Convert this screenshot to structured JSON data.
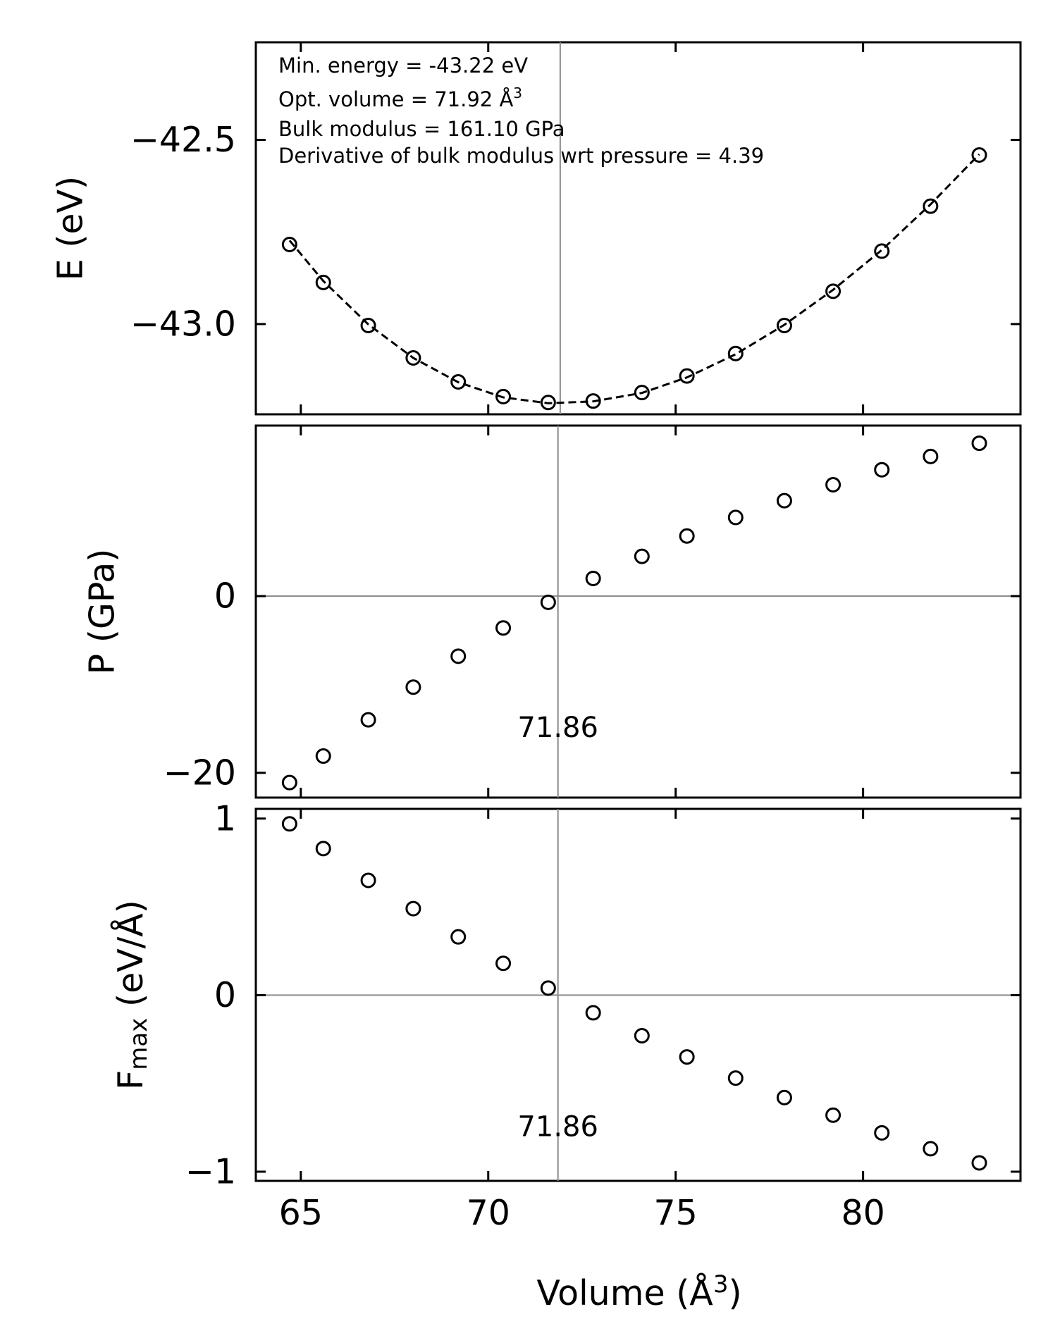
{
  "chart_data": [
    {
      "type": "scatter",
      "panel": "energy",
      "ylabel": "E (eV)",
      "xlim": [
        63.8,
        84.2
      ],
      "ylim": [
        -43.245,
        -42.235
      ],
      "yticks": [
        -43.0,
        -42.5
      ],
      "ytick_labels": [
        "−43.0",
        "−42.5"
      ],
      "x": [
        64.7,
        65.6,
        66.8,
        68.0,
        69.2,
        70.4,
        71.6,
        72.8,
        74.1,
        75.3,
        76.6,
        77.9,
        79.2,
        80.5,
        81.8,
        83.1
      ],
      "series": [
        {
          "name": "data",
          "marker": "open-circle",
          "values": [
            -42.784,
            -42.887,
            -43.004,
            -43.092,
            -43.157,
            -43.197,
            -43.213,
            -43.209,
            -43.186,
            -43.141,
            -43.08,
            -43.004,
            -42.911,
            -42.802,
            -42.68,
            -42.541
          ]
        },
        {
          "name": "EOS fit",
          "style": "dashed-line",
          "values": [
            -42.773,
            -42.883,
            -43.001,
            -43.092,
            -43.158,
            -43.199,
            -43.215,
            -43.21,
            -43.187,
            -43.145,
            -43.082,
            -43.002,
            -42.907,
            -42.799,
            -42.675,
            -42.539
          ]
        }
      ],
      "vline_x": 71.92,
      "annotations": [
        "Min. energy = -43.22 eV",
        "Opt. volume = 71.92 Å",
        "Bulk modulus = 161.10 GPa",
        "Derivative of bulk modulus wrt pressure = 4.39"
      ],
      "annotation_superscript": "3"
    },
    {
      "type": "scatter",
      "panel": "pressure",
      "ylabel": "P (GPa)",
      "xlim": [
        63.8,
        84.2
      ],
      "ylim": [
        -22.8,
        19.3
      ],
      "yticks": [
        -20,
        0
      ],
      "ytick_labels": [
        "−20",
        "0"
      ],
      "x": [
        64.7,
        65.6,
        66.8,
        68.0,
        69.2,
        70.4,
        71.6,
        72.8,
        74.1,
        75.3,
        76.6,
        77.9,
        79.2,
        80.5,
        81.8,
        83.1
      ],
      "values": [
        -21.1,
        -18.1,
        -14.0,
        -10.3,
        -6.8,
        -3.6,
        -0.7,
        2.0,
        4.5,
        6.8,
        8.9,
        10.8,
        12.6,
        14.3,
        15.8,
        17.3
      ],
      "hline_y": 0,
      "vline_x": 71.86,
      "vline_label": "71.86"
    },
    {
      "type": "scatter",
      "panel": "force",
      "ylabel": "F",
      "ylabel_sub": "max",
      "ylabel_suffix": " (eV/Å)",
      "xlabel": "Volume (Å",
      "xlabel_sup": "3",
      "xlabel_suffix": ")",
      "xlim": [
        63.8,
        84.2
      ],
      "ylim": [
        -1.052,
        1.055
      ],
      "yticks": [
        -1,
        0,
        1
      ],
      "ytick_labels": [
        "−1",
        "0",
        "1"
      ],
      "xticks": [
        65,
        70,
        75,
        80
      ],
      "xtick_labels": [
        "65",
        "70",
        "75",
        "80"
      ],
      "x": [
        64.7,
        65.6,
        66.8,
        68.0,
        69.2,
        70.4,
        71.6,
        72.8,
        74.1,
        75.3,
        76.6,
        77.9,
        79.2,
        80.5,
        81.8,
        83.1
      ],
      "values": [
        0.97,
        0.83,
        0.65,
        0.49,
        0.33,
        0.18,
        0.04,
        -0.1,
        -0.23,
        -0.35,
        -0.47,
        -0.58,
        -0.68,
        -0.78,
        -0.87,
        -0.95
      ],
      "hline_y": 0,
      "vline_x": 71.86,
      "vline_label": "71.86"
    }
  ]
}
